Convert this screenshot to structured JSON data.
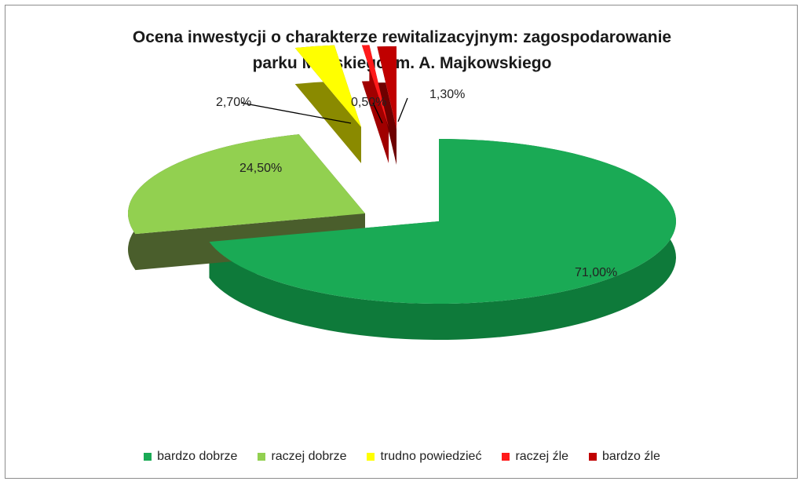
{
  "chart_data": {
    "type": "pie",
    "title": "Ocena inwestycji o charakterze rewitalizacyjnym: zagospodarowanie parku Miejskiego im. A. Majkowskiego",
    "title_lines": [
      "Ocena inwestycji o charakterze rewitalizacyjnym: zagospodarowanie",
      "parku Miejskiego im. A. Majkowskiego"
    ],
    "categories": [
      "bardzo dobrze",
      "raczej dobrze",
      "trudno powiedzieć",
      "raczej źle",
      "bardzo źle"
    ],
    "values": [
      71.0,
      24.5,
      2.7,
      0.5,
      1.3
    ],
    "labels": [
      "71,00%",
      "24,50%",
      "2,70%",
      "0,50%",
      "1,30%"
    ],
    "colors": [
      "#1aaa55",
      "#92d050",
      "#ffff00",
      "#ff1a1a",
      "#c00000"
    ],
    "side_colors": [
      "#0e7a3a",
      "#4a5e2c",
      "#8a8a00",
      "#a00000",
      "#6e0000"
    ],
    "legend_position": "bottom",
    "style": "3d-exploded"
  }
}
